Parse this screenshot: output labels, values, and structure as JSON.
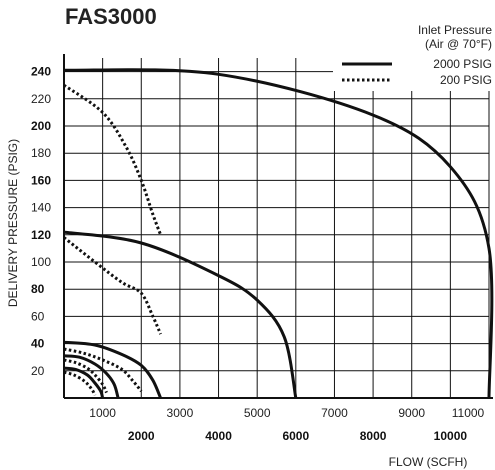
{
  "chart_data": {
    "type": "line",
    "title": "FAS3000",
    "xlabel": "FLOW (SCFH)",
    "ylabel": "DELIVERY PRESSURE (PSIG)",
    "xlim": [
      0,
      11000
    ],
    "ylim": [
      0,
      250
    ],
    "x_ticks_odd": [
      "1000",
      "3000",
      "5000",
      "7000",
      "9000",
      "11000"
    ],
    "x_ticks_even": [
      "2000",
      "4000",
      "6000",
      "8000",
      "10000"
    ],
    "y_ticks_normal": [
      "20",
      "60",
      "100",
      "140",
      "180",
      "220"
    ],
    "y_ticks_bold": [
      "40",
      "80",
      "120",
      "160",
      "200",
      "240"
    ],
    "grid": true,
    "legend": {
      "title_line1": "Inlet Pressure",
      "title_line2": "(Air @ 70°F)",
      "position": "top-right",
      "items": [
        {
          "label": "2000 PSIG",
          "style": "solid"
        },
        {
          "label": "200 PSIG",
          "style": "dotted"
        }
      ]
    },
    "series": [
      {
        "name": "2000 PSIG",
        "style": "solid",
        "x": [
          0,
          4000,
          8000,
          10000,
          11000,
          11000
        ],
        "y": [
          241,
          238,
          208,
          170,
          110,
          0
        ]
      },
      {
        "name": "200 PSIG",
        "style": "dotted",
        "x": [
          0,
          1000,
          1600,
          2000,
          2300,
          2500
        ],
        "y": [
          230,
          210,
          185,
          160,
          135,
          120
        ]
      },
      {
        "name": "2000 PSIG",
        "style": "solid",
        "x": [
          0,
          2000,
          4000,
          5000,
          5700,
          6000
        ],
        "y": [
          122,
          114,
          90,
          72,
          45,
          0
        ]
      },
      {
        "name": "200 PSIG",
        "style": "dotted",
        "x": [
          0,
          800,
          1500,
          2000,
          2300,
          2500
        ],
        "y": [
          118,
          100,
          85,
          77,
          60,
          47
        ]
      },
      {
        "name": "2000 PSIG",
        "style": "solid",
        "x": [
          0,
          800,
          1500,
          2000,
          2300,
          2500
        ],
        "y": [
          41,
          39,
          32,
          24,
          13,
          0
        ]
      },
      {
        "name": "200 PSIG",
        "style": "dotted",
        "x": [
          0,
          500,
          1000,
          1500,
          1800,
          2000
        ],
        "y": [
          36,
          33,
          28,
          21,
          12,
          5
        ]
      },
      {
        "name": "2000 PSIG",
        "style": "solid",
        "x": [
          0,
          400,
          800,
          1100,
          1300,
          1400
        ],
        "y": [
          31,
          30,
          25,
          18,
          10,
          0
        ]
      },
      {
        "name": "200 PSIG",
        "style": "dotted",
        "x": [
          0,
          300,
          600,
          800,
          1000,
          1100
        ],
        "y": [
          28,
          26,
          22,
          17,
          10,
          4
        ]
      },
      {
        "name": "2000 PSIG",
        "style": "solid",
        "x": [
          0,
          300,
          600,
          800,
          950,
          1000
        ],
        "y": [
          22,
          21,
          17,
          11,
          5,
          0
        ]
      },
      {
        "name": "200 PSIG",
        "style": "dotted",
        "x": [
          0,
          250,
          500,
          650,
          750,
          800
        ],
        "y": [
          19,
          17,
          13,
          9,
          5,
          2
        ]
      }
    ]
  }
}
